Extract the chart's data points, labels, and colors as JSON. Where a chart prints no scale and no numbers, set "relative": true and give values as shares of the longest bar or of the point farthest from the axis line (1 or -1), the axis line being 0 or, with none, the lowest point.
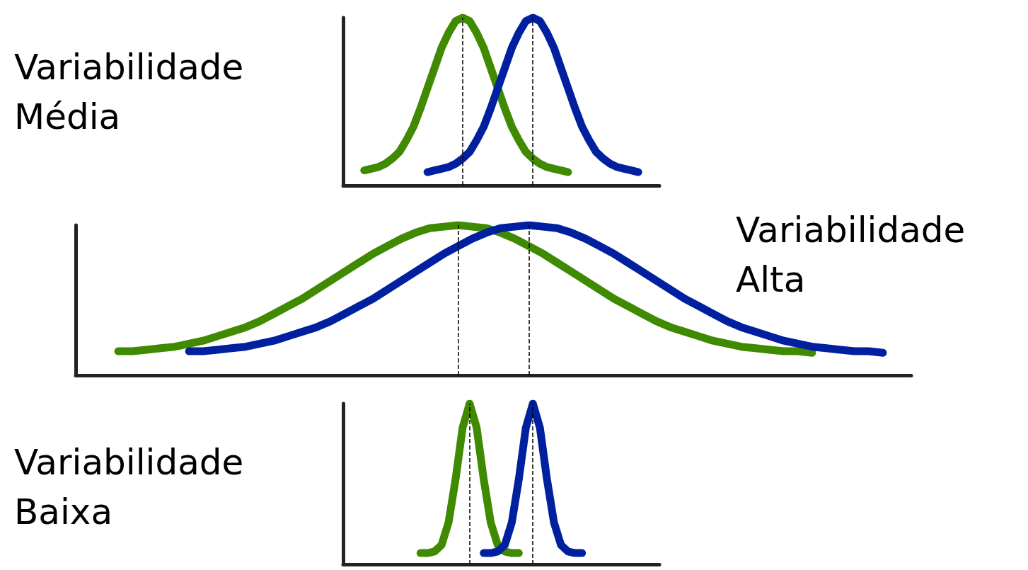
{
  "chart_data": [
    {
      "type": "line",
      "title": "Variabilidade Média",
      "relative": true,
      "marker": "none",
      "line_style": "solid",
      "categories": [
        null,
        null,
        null,
        null,
        null,
        null,
        null,
        null,
        null,
        null,
        null,
        null,
        null,
        null,
        null,
        null,
        null,
        null,
        null,
        null,
        null,
        null,
        null,
        null,
        null,
        null,
        null,
        null,
        null,
        null,
        null,
        null,
        null,
        null,
        null,
        null,
        null,
        null,
        null,
        null,
        null,
        null,
        null,
        null,
        null,
        null
      ],
      "series": [
        {
          "color": "#3f8a00",
          "values": [
            null,
            null,
            null,
            0.09,
            0.1,
            0.11,
            0.13,
            0.16,
            0.2,
            0.27,
            0.35,
            0.46,
            0.58,
            0.7,
            0.82,
            0.91,
            0.98,
            1.0,
            0.98,
            0.91,
            0.82,
            0.7,
            0.58,
            0.46,
            0.35,
            0.27,
            0.2,
            0.16,
            0.13,
            0.11,
            0.1,
            0.09,
            0.08,
            null,
            null,
            null,
            null,
            null,
            null,
            null,
            null,
            null,
            null,
            null,
            null,
            null
          ]
        },
        {
          "color": "#00209f",
          "values": [
            null,
            null,
            null,
            null,
            null,
            null,
            null,
            null,
            null,
            null,
            null,
            null,
            0.08,
            0.09,
            0.1,
            0.11,
            0.13,
            0.16,
            0.2,
            0.27,
            0.35,
            0.46,
            0.58,
            0.7,
            0.82,
            0.91,
            0.98,
            1.0,
            0.98,
            0.91,
            0.82,
            0.7,
            0.58,
            0.46,
            0.35,
            0.27,
            0.2,
            0.16,
            0.13,
            0.11,
            0.1,
            0.09,
            0.08,
            null,
            null,
            null
          ]
        }
      ]
    },
    {
      "type": "line",
      "title": "Variabilidade Alta",
      "relative": true,
      "marker": "none",
      "line_style": "solid",
      "categories": [
        null,
        null,
        null,
        null,
        null,
        null,
        null,
        null,
        null,
        null,
        null,
        null,
        null,
        null,
        null,
        null,
        null,
        null,
        null,
        null,
        null,
        null,
        null,
        null,
        null,
        null,
        null,
        null,
        null,
        null,
        null,
        null,
        null,
        null,
        null,
        null,
        null,
        null,
        null,
        null,
        null,
        null,
        null,
        null,
        null,
        null,
        null,
        null,
        null,
        null,
        null,
        null,
        null,
        null,
        null,
        null,
        null,
        null,
        null,
        null
      ],
      "series": [
        {
          "color": "#3f8a00",
          "values": [
            null,
            null,
            null,
            0.16,
            0.16,
            0.17,
            0.18,
            0.19,
            0.21,
            0.23,
            0.26,
            0.29,
            0.32,
            0.36,
            0.41,
            0.46,
            0.51,
            0.57,
            0.63,
            0.69,
            0.75,
            0.81,
            0.86,
            0.91,
            0.95,
            0.98,
            0.99,
            1.0,
            0.99,
            0.98,
            0.95,
            0.91,
            0.86,
            0.81,
            0.75,
            0.69,
            0.63,
            0.57,
            0.51,
            0.46,
            0.41,
            0.36,
            0.32,
            0.29,
            0.26,
            0.23,
            0.21,
            0.19,
            0.18,
            0.17,
            0.16,
            0.16,
            0.15,
            null,
            null,
            null,
            null,
            null,
            null,
            null
          ]
        },
        {
          "color": "#00209f",
          "values": [
            null,
            null,
            null,
            null,
            null,
            null,
            null,
            null,
            0.16,
            0.16,
            0.17,
            0.18,
            0.19,
            0.21,
            0.23,
            0.26,
            0.29,
            0.32,
            0.36,
            0.41,
            0.46,
            0.51,
            0.57,
            0.63,
            0.69,
            0.75,
            0.81,
            0.86,
            0.91,
            0.95,
            0.98,
            0.99,
            1.0,
            0.99,
            0.98,
            0.95,
            0.91,
            0.86,
            0.81,
            0.75,
            0.69,
            0.63,
            0.57,
            0.51,
            0.46,
            0.41,
            0.36,
            0.32,
            0.29,
            0.26,
            0.23,
            0.21,
            0.19,
            0.18,
            0.17,
            0.16,
            0.16,
            0.15,
            null,
            null
          ]
        }
      ]
    },
    {
      "type": "line",
      "title": "Variabilidade Baixa",
      "relative": true,
      "marker": "none",
      "line_style": "solid",
      "categories": [
        null,
        null,
        null,
        null,
        null,
        null,
        null,
        null,
        null,
        null,
        null,
        null,
        null,
        null,
        null,
        null,
        null,
        null,
        null,
        null,
        null,
        null,
        null,
        null,
        null,
        null,
        null,
        null,
        null,
        null,
        null,
        null,
        null,
        null,
        null,
        null,
        null,
        null,
        null,
        null,
        null,
        null,
        null,
        null,
        null,
        null
      ],
      "series": [
        {
          "color": "#3f8a00",
          "values": [
            null,
            null,
            null,
            null,
            null,
            null,
            null,
            null,
            null,
            null,
            null,
            0.07,
            0.07,
            0.08,
            0.12,
            0.26,
            0.53,
            0.85,
            1.0,
            0.85,
            0.53,
            0.26,
            0.12,
            0.08,
            0.07,
            0.07,
            null,
            null,
            null,
            null,
            null,
            null,
            null,
            null,
            null,
            null,
            null,
            null,
            null,
            null,
            null,
            null,
            null,
            null,
            null,
            null
          ]
        },
        {
          "color": "#00209f",
          "values": [
            null,
            null,
            null,
            null,
            null,
            null,
            null,
            null,
            null,
            null,
            null,
            null,
            null,
            null,
            null,
            null,
            null,
            null,
            null,
            null,
            0.07,
            0.07,
            0.08,
            0.12,
            0.26,
            0.53,
            0.85,
            1.0,
            0.85,
            0.53,
            0.26,
            0.12,
            0.08,
            0.07,
            0.07,
            null,
            null,
            null,
            null,
            null,
            null,
            null,
            null,
            null,
            null,
            null
          ]
        }
      ]
    }
  ]
}
